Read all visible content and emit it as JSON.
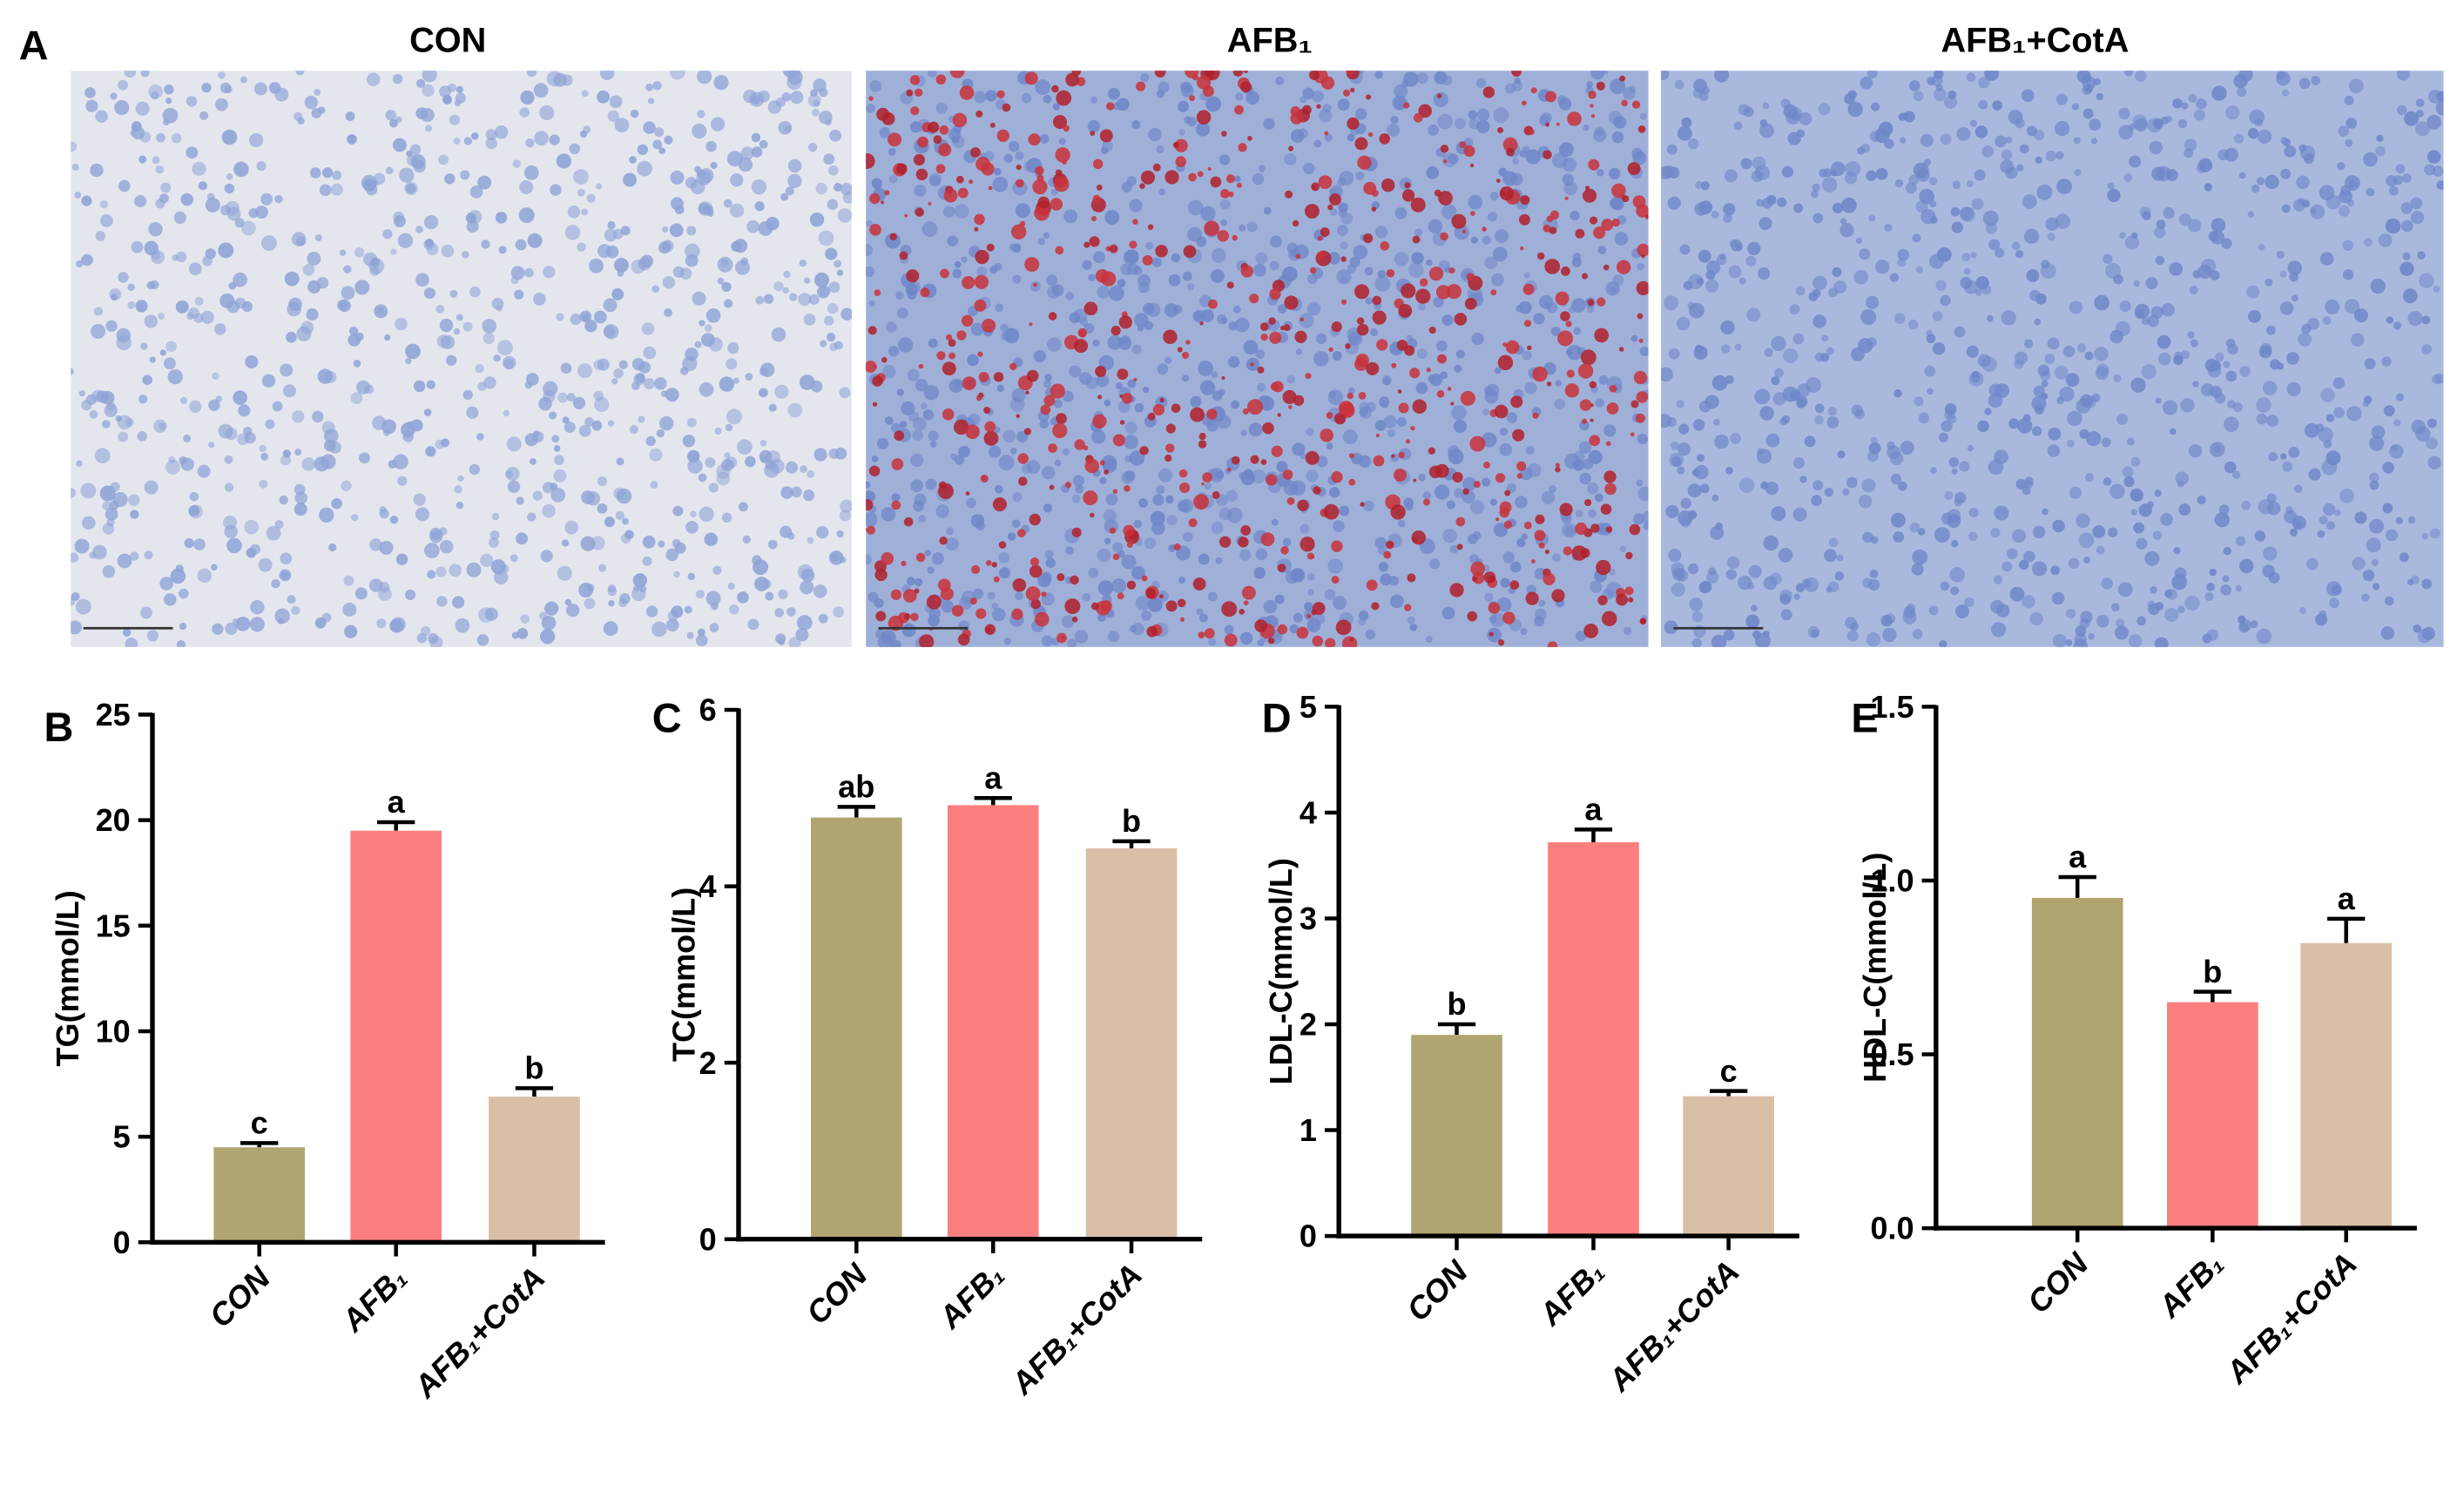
{
  "panel_a": {
    "label": "A",
    "titles": [
      "CON",
      "AFB₁",
      "AFB₁+CotA"
    ]
  },
  "chart_data": [
    {
      "type": "bar",
      "panel_label": "B",
      "ylabel": "TG(mmol/L)",
      "categories": [
        "CON",
        "AFB₁",
        "AFB₁+CotA"
      ],
      "values": [
        4.5,
        19.5,
        6.9
      ],
      "errors": [
        0.2,
        0.4,
        0.4
      ],
      "significance": [
        "c",
        "a",
        "b"
      ],
      "colors": [
        "#b0a470",
        "#fc7f7f",
        "#d9bfa6"
      ],
      "ylim": [
        0,
        25
      ],
      "yticks": [
        0,
        5,
        10,
        15,
        20,
        25
      ]
    },
    {
      "type": "bar",
      "panel_label": "C",
      "ylabel": "TC(mmol/L)",
      "categories": [
        "CON",
        "AFB₁",
        "AFB₁+CotA"
      ],
      "values": [
        4.78,
        4.92,
        4.43
      ],
      "errors": [
        0.12,
        0.08,
        0.08
      ],
      "significance": [
        "ab",
        "a",
        "b"
      ],
      "colors": [
        "#b0a470",
        "#fc7f7f",
        "#d9bfa6"
      ],
      "ylim": [
        0,
        6
      ],
      "yticks": [
        0,
        2,
        4,
        6
      ]
    },
    {
      "type": "bar",
      "panel_label": "D",
      "ylabel": "LDL-C(mmol/L)",
      "categories": [
        "CON",
        "AFB₁",
        "AFB₁+CotA"
      ],
      "values": [
        1.9,
        3.72,
        1.32
      ],
      "errors": [
        0.1,
        0.12,
        0.05
      ],
      "significance": [
        "b",
        "a",
        "c"
      ],
      "colors": [
        "#b0a470",
        "#fc7f7f",
        "#d9bfa6"
      ],
      "ylim": [
        0,
        5
      ],
      "yticks": [
        0,
        1,
        2,
        3,
        4,
        5
      ]
    },
    {
      "type": "bar",
      "panel_label": "E",
      "ylabel": "HDL-C(mmol/L)",
      "categories": [
        "CON",
        "AFB₁",
        "AFB₁+CotA"
      ],
      "values": [
        0.95,
        0.65,
        0.82
      ],
      "errors": [
        0.06,
        0.03,
        0.07
      ],
      "significance": [
        "a",
        "b",
        "a"
      ],
      "colors": [
        "#b0a470",
        "#fc7f7f",
        "#d9bfa6"
      ],
      "ylim": [
        0,
        1.5
      ],
      "yticks": [
        {
          "value": 0,
          "label": "0.0"
        },
        0.5,
        {
          "value": 1,
          "label": "1.0"
        },
        1.5
      ]
    }
  ]
}
